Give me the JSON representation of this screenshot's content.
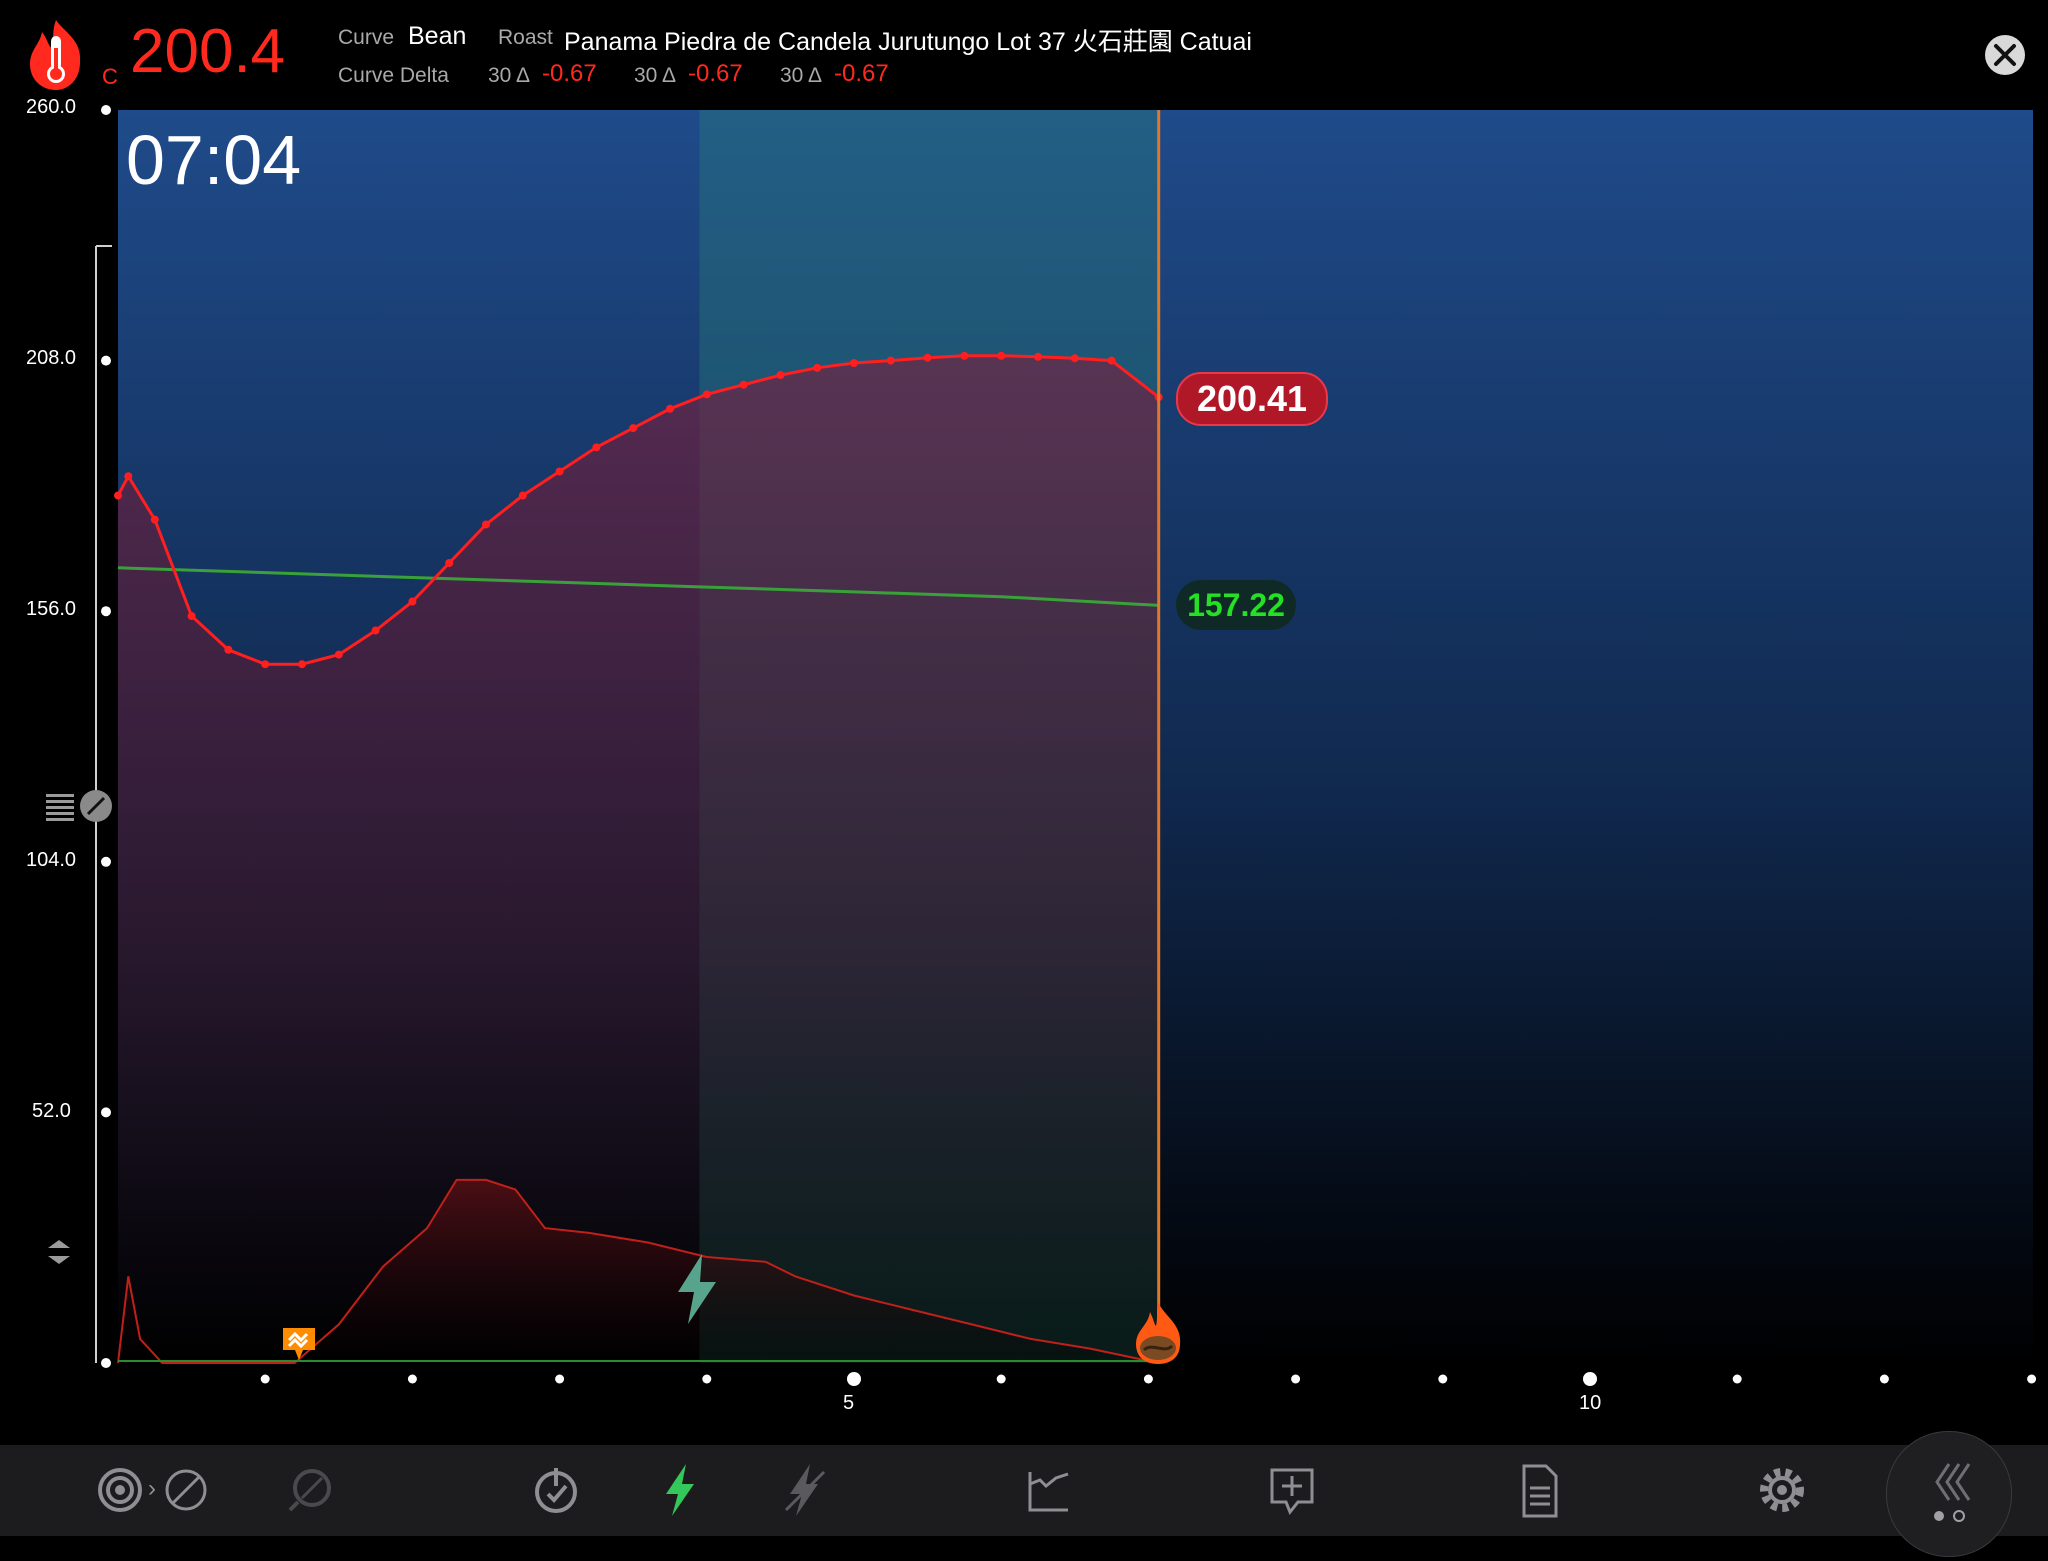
{
  "header": {
    "temp_unit": "C",
    "current_temp": "200.4",
    "curve_label": "Curve",
    "curve_value": "Bean",
    "roast_label": "Roast",
    "roast_value": "Panama Piedra de Candela Jurutungo Lot 37 火石莊園 Catuai",
    "delta_label": "Curve Delta",
    "deltas": [
      {
        "prefix": "30 Δ",
        "value": "-0.67"
      },
      {
        "prefix": "30 Δ",
        "value": "-0.67"
      },
      {
        "prefix": "30 Δ",
        "value": "-0.67"
      }
    ]
  },
  "timer": "07:04",
  "chart_data": {
    "type": "line",
    "y_ticks": [
      "260.0",
      "208.0",
      "156.0",
      "104.0",
      "52.0"
    ],
    "ylim": [
      0,
      260
    ],
    "xlim": [
      0,
      13
    ],
    "x_tick_labels": [
      {
        "x": 5,
        "label": "5"
      },
      {
        "x": 10,
        "label": "10"
      }
    ],
    "series": [
      {
        "color": "#ff1f1f",
        "points": [
          [
            0,
            180
          ],
          [
            0.07,
            184
          ],
          [
            0.25,
            175
          ],
          [
            0.5,
            155
          ],
          [
            0.75,
            148
          ],
          [
            1.0,
            145
          ],
          [
            1.25,
            145
          ],
          [
            1.5,
            147
          ],
          [
            1.75,
            152
          ],
          [
            2.0,
            158
          ],
          [
            2.25,
            166
          ],
          [
            2.5,
            174
          ],
          [
            2.75,
            180
          ],
          [
            3.0,
            185
          ],
          [
            3.25,
            190
          ],
          [
            3.5,
            194
          ],
          [
            3.75,
            198
          ],
          [
            4.0,
            201
          ],
          [
            4.25,
            203
          ],
          [
            4.5,
            205
          ],
          [
            4.75,
            206.5
          ],
          [
            5.0,
            207.5
          ],
          [
            5.25,
            208
          ],
          [
            5.5,
            208.6
          ],
          [
            5.75,
            209
          ],
          [
            6.0,
            209
          ],
          [
            6.25,
            208.8
          ],
          [
            6.5,
            208.5
          ],
          [
            6.75,
            208
          ],
          [
            7.07,
            200.4
          ]
        ]
      },
      {
        "color": "#3aa13a",
        "points": [
          [
            0,
            165
          ],
          [
            1,
            164
          ],
          [
            2,
            163
          ],
          [
            3,
            162
          ],
          [
            4,
            161
          ],
          [
            5,
            160
          ],
          [
            6,
            159
          ],
          [
            7.07,
            157.2
          ]
        ]
      },
      {
        "color": "#c0201a",
        "points": [
          [
            0,
            0
          ],
          [
            0.07,
            18
          ],
          [
            0.15,
            5
          ],
          [
            0.3,
            0
          ],
          [
            1.2,
            0
          ],
          [
            1.5,
            8
          ],
          [
            1.8,
            20
          ],
          [
            2.1,
            28
          ],
          [
            2.3,
            38
          ],
          [
            2.5,
            38
          ],
          [
            2.7,
            36
          ],
          [
            2.9,
            28
          ],
          [
            3.2,
            27
          ],
          [
            3.6,
            25
          ],
          [
            4.0,
            22
          ],
          [
            4.4,
            21
          ],
          [
            4.6,
            18
          ],
          [
            5.0,
            14
          ],
          [
            5.4,
            11
          ],
          [
            5.8,
            8
          ],
          [
            6.2,
            5
          ],
          [
            6.6,
            3
          ],
          [
            7.07,
            0
          ]
        ]
      }
    ],
    "bean_temp_label": "200.41",
    "env_temp_label": "157.22",
    "events": [
      {
        "name": "charge-marker",
        "x": 1.22
      },
      {
        "name": "first-crack",
        "x": 3.95
      },
      {
        "name": "drop",
        "x": 7.07
      }
    ],
    "development_zone": [
      3.95,
      7.07
    ]
  },
  "toolbar": {
    "items": [
      "target-icon",
      "disable-icon",
      "probe-icon",
      "power-timer-icon",
      "bolt-icon",
      "bolt-off-icon",
      "chart-curve-icon",
      "add-comment-icon",
      "document-icon",
      "settings-gear-icon",
      "collapse-icon"
    ]
  }
}
